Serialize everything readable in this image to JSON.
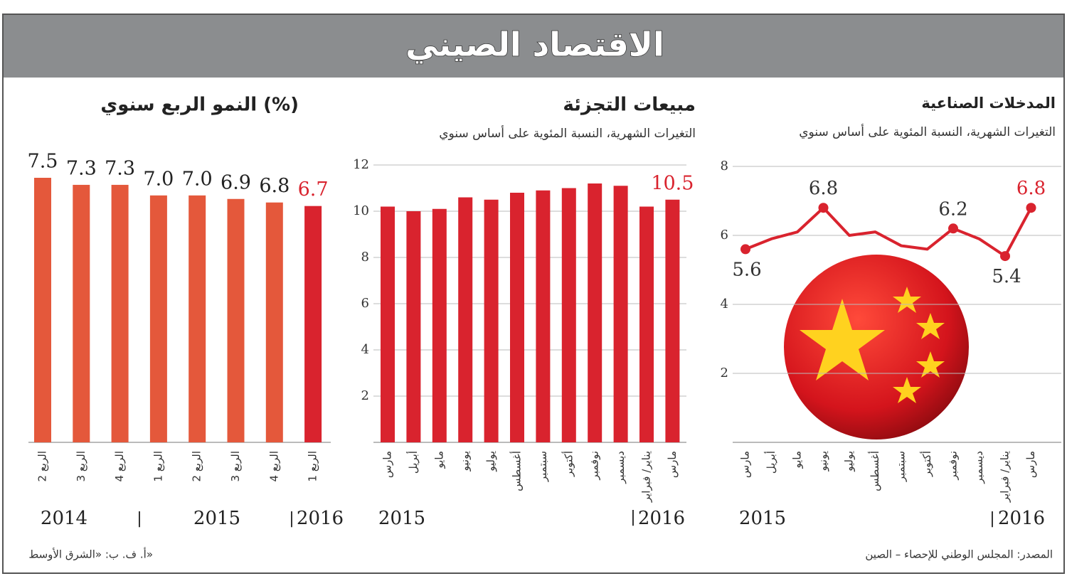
{
  "header": {
    "title": "الاقتصاد الصيني"
  },
  "chart_data": [
    {
      "type": "bar",
      "title": "النمو الربع سنوي (%)",
      "categories": [
        "الربع 2",
        "الربع 3",
        "الربع 4",
        "الربع 1",
        "الربع 2",
        "الربع 3",
        "الربع 4",
        "الربع 1"
      ],
      "values": [
        7.5,
        7.3,
        7.3,
        7.0,
        7.0,
        6.9,
        6.8,
        6.7
      ],
      "value_labels": [
        "7.5",
        "7.3",
        "7.3",
        "7.0",
        "7.0",
        "6.9",
        "6.8",
        "6.7"
      ],
      "colors": [
        "#e4583b",
        "#e4583b",
        "#e4583b",
        "#e4583b",
        "#e4583b",
        "#e4583b",
        "#e4583b",
        "#d9232e"
      ],
      "label_colors": [
        "#222222",
        "#222222",
        "#222222",
        "#222222",
        "#222222",
        "#222222",
        "#222222",
        "#d9232e"
      ],
      "years": [
        "2014",
        "2015",
        "2016"
      ]
    },
    {
      "type": "bar",
      "title": "مبيعات التجزئة",
      "subtitle": "التغيرات الشهرية، النسبة المئوية على أساس سنوي",
      "categories": [
        "مارس",
        "أبريل",
        "مايو",
        "يونيو",
        "يوليو",
        "أغسطس",
        "سبتمبر",
        "أكتوبر",
        "نوفمبر",
        "ديسمبر",
        "يناير/ فبراير",
        "مارس"
      ],
      "values": [
        10.2,
        10.0,
        10.1,
        10.6,
        10.5,
        10.8,
        10.9,
        11.0,
        11.2,
        11.1,
        10.2,
        10.5
      ],
      "value_labels": [
        null,
        null,
        null,
        null,
        null,
        null,
        null,
        null,
        null,
        null,
        null,
        "10.5"
      ],
      "color": "#d9232e",
      "label_color": "#d9232e",
      "ylim": [
        0,
        12
      ],
      "yticks": [
        2,
        4,
        6,
        8,
        10,
        12
      ],
      "grid": true,
      "years": [
        "2015",
        "2016"
      ]
    },
    {
      "type": "line",
      "title": "المدخلات الصناعية",
      "subtitle": "التغيرات الشهرية، النسبة المئوية على أساس سنوي",
      "categories": [
        "مارس",
        "أبريل",
        "مايو",
        "يونيو",
        "يوليو",
        "أغسطس",
        "سبتمبر",
        "أكتوبر",
        "نوفمبر",
        "ديسمبر",
        "يناير/ فبراير",
        "مارس"
      ],
      "values": [
        5.6,
        5.9,
        6.1,
        6.8,
        6.0,
        6.1,
        5.7,
        5.6,
        6.2,
        5.9,
        5.4,
        6.8
      ],
      "value_labels": [
        "5.6",
        null,
        null,
        "6.8",
        null,
        null,
        null,
        null,
        "6.2",
        null,
        "5.4",
        "6.8"
      ],
      "label_colors": [
        "#333333",
        null,
        null,
        "#333333",
        null,
        null,
        null,
        null,
        "#333333",
        null,
        "#333333",
        "#d9232e"
      ],
      "color": "#d9232e",
      "ylim": [
        0,
        8
      ],
      "yticks": [
        2,
        4,
        6,
        8
      ],
      "grid": true,
      "years": [
        "2015",
        "2016"
      ]
    }
  ],
  "footer": {
    "source": "المصدر: المجلس الوطني للإحصاء – الصين",
    "credit": "أ. ف. ب: «الشرق الأوسط»"
  }
}
